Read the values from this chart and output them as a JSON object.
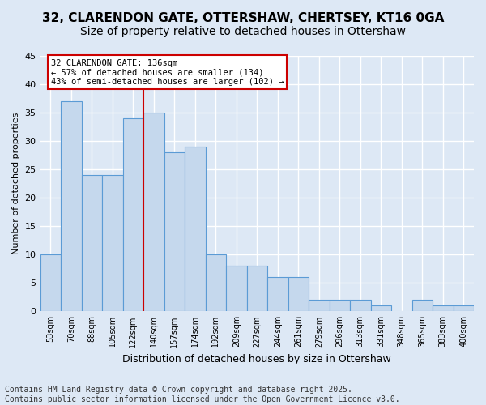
{
  "title1": "32, CLARENDON GATE, OTTERSHAW, CHERTSEY, KT16 0GA",
  "title2": "Size of property relative to detached houses in Ottershaw",
  "xlabel": "Distribution of detached houses by size in Ottershaw",
  "ylabel": "Number of detached properties",
  "bin_labels": [
    "53sqm",
    "70sqm",
    "88sqm",
    "105sqm",
    "122sqm",
    "140sqm",
    "157sqm",
    "174sqm",
    "192sqm",
    "209sqm",
    "227sqm",
    "244sqm",
    "261sqm",
    "279sqm",
    "296sqm",
    "313sqm",
    "331sqm",
    "348sqm",
    "365sqm",
    "383sqm",
    "400sqm"
  ],
  "bar_heights": [
    10,
    37,
    24,
    24,
    34,
    35,
    28,
    29,
    10,
    8,
    8,
    6,
    6,
    2,
    2,
    2,
    1,
    0,
    2,
    1,
    1
  ],
  "bar_color": "#c5d8ed",
  "bar_edge_color": "#5b9bd5",
  "property_line_color": "#cc0000",
  "annotation_text": "32 CLARENDON GATE: 136sqm\n← 57% of detached houses are smaller (134)\n43% of semi-detached houses are larger (102) →",
  "annotation_box_color": "#cc0000",
  "bg_color": "#dde8f5",
  "plot_bg_color": "#dde8f5",
  "grid_color": "#ffffff",
  "ylim": [
    0,
    45
  ],
  "yticks": [
    0,
    5,
    10,
    15,
    20,
    25,
    30,
    35,
    40,
    45
  ],
  "footer_text": "Contains HM Land Registry data © Crown copyright and database right 2025.\nContains public sector information licensed under the Open Government Licence v3.0.",
  "title_fontsize": 11,
  "subtitle_fontsize": 10,
  "annot_fontsize": 7.5,
  "footer_fontsize": 7
}
